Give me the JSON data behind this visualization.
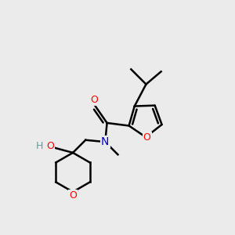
{
  "bg_color": "#ebebeb",
  "atom_colors": {
    "C": "#000000",
    "O": "#ff0000",
    "N": "#0000cd",
    "H": "#5f9ea0"
  },
  "figsize": [
    3.0,
    3.0
  ],
  "dpi": 100
}
